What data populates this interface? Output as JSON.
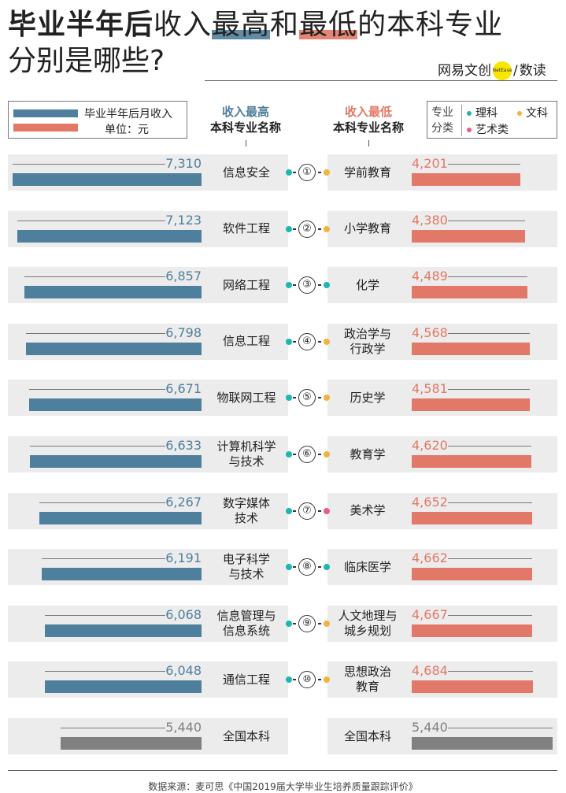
{
  "title": {
    "line1_bold": "毕业半年后",
    "line1_a": "收入",
    "line1_hl1": "最高",
    "line1_b": "和",
    "line1_hl2": "最低",
    "line1_c": "的本科专业",
    "line2": "分别是哪些?"
  },
  "brand": {
    "name": "网易文创",
    "badge": "NetEase",
    "sep": "/",
    "sub": "数读"
  },
  "legend": {
    "label": "毕业半年后月收入",
    "unit": "单位：元"
  },
  "headers": {
    "high_top": "收入最高",
    "high_sub": "本科专业名称",
    "low_top": "收入最低",
    "low_sub": "本科专业名称"
  },
  "category_legend": {
    "label": "专业分类",
    "items": [
      {
        "name": "理科",
        "color": "#1fb5b0"
      },
      {
        "name": "文科",
        "color": "#f2b33d"
      },
      {
        "name": "艺术类",
        "color": "#e85b8d"
      }
    ]
  },
  "colors": {
    "high": "#4e7f9c",
    "low": "#e27867",
    "national": "#808080",
    "row_bg": "#ececec"
  },
  "chart_data": {
    "type": "bar",
    "unit": "元",
    "xlim": [
      0,
      7310
    ],
    "high": [
      {
        "rank": "①",
        "name": "信息安全",
        "value": 7310,
        "category": "理科"
      },
      {
        "rank": "②",
        "name": "软件工程",
        "value": 7123,
        "category": "理科"
      },
      {
        "rank": "③",
        "name": "网络工程",
        "value": 6857,
        "category": "理科"
      },
      {
        "rank": "④",
        "name": "信息工程",
        "value": 6798,
        "category": "理科"
      },
      {
        "rank": "⑤",
        "name": "物联网工程",
        "value": 6671,
        "category": "理科"
      },
      {
        "rank": "⑥",
        "name": "计算机科学\n与技术",
        "value": 6633,
        "category": "理科"
      },
      {
        "rank": "⑦",
        "name": "数字媒体\n技术",
        "value": 6267,
        "category": "理科"
      },
      {
        "rank": "⑧",
        "name": "电子科学\n与技术",
        "value": 6191,
        "category": "理科"
      },
      {
        "rank": "⑨",
        "name": "信息管理与\n信息系统",
        "value": 6068,
        "category": "理科"
      },
      {
        "rank": "⑩",
        "name": "通信工程",
        "value": 6048,
        "category": "理科"
      }
    ],
    "low": [
      {
        "name": "学前教育",
        "value": 4201,
        "category": "文科"
      },
      {
        "name": "小学教育",
        "value": 4380,
        "category": "文科"
      },
      {
        "name": "化学",
        "value": 4489,
        "category": "理科"
      },
      {
        "name": "政治学与\n行政学",
        "value": 4568,
        "category": "文科"
      },
      {
        "name": "历史学",
        "value": 4581,
        "category": "文科"
      },
      {
        "name": "教育学",
        "value": 4620,
        "category": "文科"
      },
      {
        "name": "美术学",
        "value": 4652,
        "category": "艺术类"
      },
      {
        "name": "临床医学",
        "value": 4662,
        "category": "理科"
      },
      {
        "name": "人文地理与\n城乡规划",
        "value": 4667,
        "category": "文科"
      },
      {
        "name": "思想政治\n教育",
        "value": 4684,
        "category": "文科"
      }
    ],
    "national": {
      "name": "全国本科",
      "value": 5440
    }
  },
  "footer": {
    "source": "数据来源：麦可思《中国2019届大学毕业生培养质量跟踪评价》"
  }
}
